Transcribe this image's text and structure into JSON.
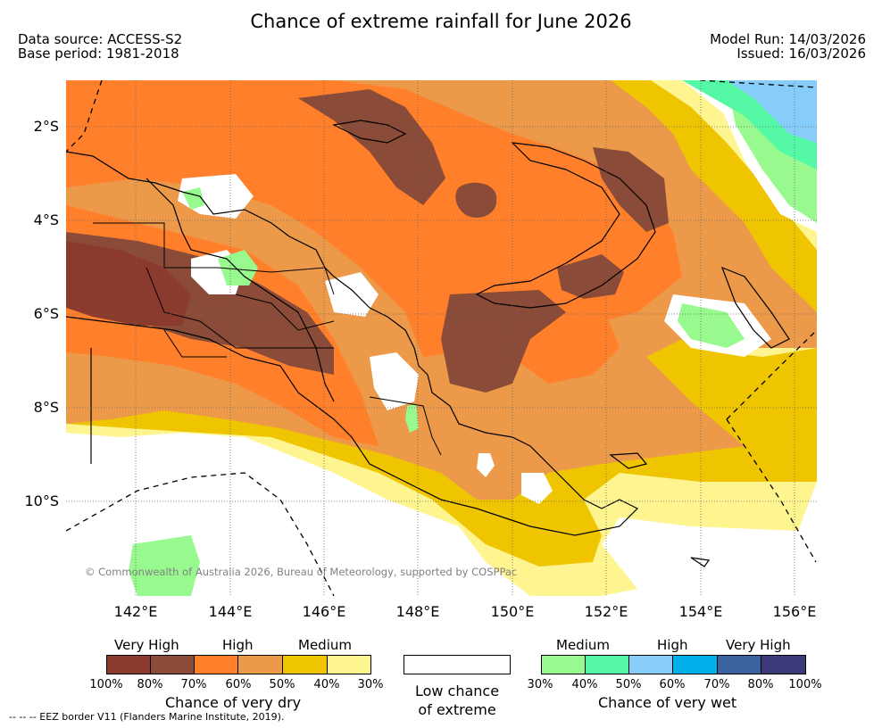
{
  "title": "Chance of extreme rainfall for June 2026",
  "data_source": "Data source: ACCESS-S2",
  "base_period": "Base period: 1981-2018",
  "model_run": "Model Run: 14/03/2026",
  "issued": "Issued: 16/03/2026",
  "lat_labels": [
    "2°S",
    "4°S",
    "6°S",
    "8°S",
    "10°S"
  ],
  "lon_labels": [
    "142°E",
    "144°E",
    "146°E",
    "148°E",
    "150°E",
    "152°E",
    "154°E",
    "156°E"
  ],
  "copyright": "© Commonwealth of Australia 2026, Bureau of Meteorology, supported by COSPPac",
  "dry": {
    "levels": [
      "Very High",
      "High",
      "Medium"
    ],
    "caption": "Chance of very dry",
    "colors": [
      "#8b3a2e",
      "#8a4b38",
      "#ff7f2a",
      "#ec9a4a",
      "#eec500",
      "#fff590"
    ],
    "ticks": [
      "100%",
      "80%",
      "70%",
      "60%",
      "50%",
      "40%",
      "30%"
    ]
  },
  "low": {
    "caption_line1": "Low chance",
    "caption_line2": "of extreme",
    "color": "#ffffff"
  },
  "wet": {
    "levels": [
      "Medium",
      "High",
      "Very High"
    ],
    "caption": "Chance of very wet",
    "colors": [
      "#98fa8e",
      "#55f9a5",
      "#87cdfa",
      "#00b0ea",
      "#3c619f",
      "#3d3a7a"
    ],
    "ticks": [
      "30%",
      "40%",
      "50%",
      "60%",
      "70%",
      "80%",
      "100%"
    ]
  },
  "footnote": "--  --  -- EEZ border V11 (Flanders Marine Institute, 2019)."
}
